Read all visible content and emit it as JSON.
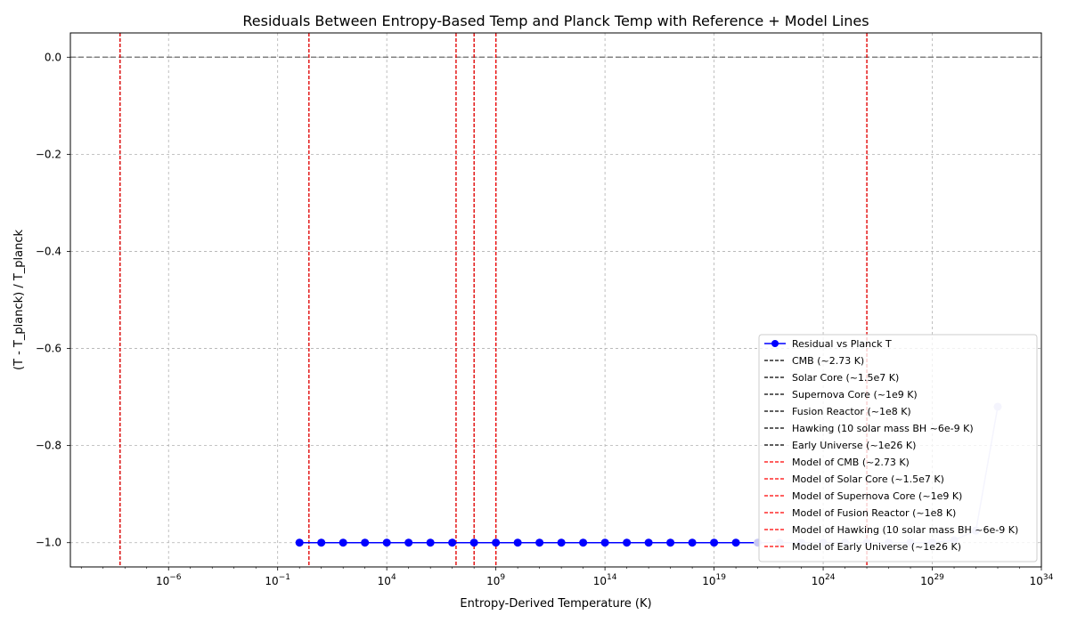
{
  "chart_data": {
    "type": "line",
    "title": "Residuals Between Entropy-Based Temp and Planck Temp with Reference + Model Lines",
    "xlabel": "Entropy-Derived Temperature (K)",
    "ylabel": "(T - T_planck) / T_planck",
    "xscale": "log",
    "xlim_exp": [
      -10.5,
      34
    ],
    "ylim": [
      -1.05,
      0.05
    ],
    "grid": true,
    "x_ticks": [
      {
        "exp": -6,
        "base": "10",
        "sup": "−6"
      },
      {
        "exp": -1,
        "base": "10",
        "sup": "−1"
      },
      {
        "exp": 4,
        "base": "10",
        "sup": "4"
      },
      {
        "exp": 9,
        "base": "10",
        "sup": "9"
      },
      {
        "exp": 14,
        "base": "10",
        "sup": "14"
      },
      {
        "exp": 19,
        "base": "10",
        "sup": "19"
      },
      {
        "exp": 24,
        "base": "10",
        "sup": "24"
      },
      {
        "exp": 29,
        "base": "10",
        "sup": "29"
      },
      {
        "exp": 34,
        "base": "10",
        "sup": "34"
      }
    ],
    "y_ticks": [
      {
        "value": 0.0,
        "label": "0.0"
      },
      {
        "value": -0.2,
        "label": "−0.2"
      },
      {
        "value": -0.4,
        "label": "−0.4"
      },
      {
        "value": -0.6,
        "label": "−0.6"
      },
      {
        "value": -0.8,
        "label": "−0.8"
      },
      {
        "value": -1.0,
        "label": "−1.0"
      }
    ],
    "residual_series": {
      "name": "Residual vs Planck T",
      "color": "#0000ff",
      "x_exp": [
        0.0,
        1.0,
        2.0,
        3.0,
        4.0,
        5.0,
        6.0,
        7.0,
        8.0,
        9.0,
        10.0,
        11.0,
        12.0,
        13.0,
        14.0,
        15.0,
        16.0,
        17.0,
        18.0,
        19.0,
        20.0,
        21.0,
        22.0,
        23.0,
        24.0,
        25.0,
        26.0,
        27.0,
        28.0,
        29.0,
        30.0,
        31.0,
        32.0
      ],
      "values": [
        -1.0,
        -1.0,
        -1.0,
        -1.0,
        -1.0,
        -1.0,
        -1.0,
        -1.0,
        -1.0,
        -1.0,
        -1.0,
        -1.0,
        -1.0,
        -1.0,
        -1.0,
        -1.0,
        -1.0,
        -1.0,
        -1.0,
        -1.0,
        -1.0,
        -1.0,
        -1.0,
        -1.0,
        -1.0,
        -1.0,
        -1.0,
        -1.0,
        -1.0,
        -1.0,
        -0.995,
        -0.975,
        -0.72
      ],
      "faded_from_index": 21,
      "faded_color": "#c8c8f5"
    },
    "reference_lines": [
      {
        "name": "CMB (~2.73 K)",
        "x_exp": 0.436
      },
      {
        "name": "Solar Core (~1.5e7 K)",
        "x_exp": 7.176
      },
      {
        "name": "Supernova Core (~1e9 K)",
        "x_exp": 9.0
      },
      {
        "name": "Fusion Reactor (~1e8 K)",
        "x_exp": 8.0
      },
      {
        "name": "Hawking (10 solar mass BH ~6e-9 K)",
        "x_exp": -8.222
      },
      {
        "name": "Early Universe (~1e26 K)",
        "x_exp": 26.0
      }
    ],
    "model_lines": [
      {
        "name": "Model of CMB (~2.73 K)",
        "x_exp": 0.436
      },
      {
        "name": "Model of Solar Core (~1.5e7 K)",
        "x_exp": 7.176
      },
      {
        "name": "Model of Supernova Core (~1e9 K)",
        "x_exp": 9.0
      },
      {
        "name": "Model of Fusion Reactor (~1e8 K)",
        "x_exp": 8.0
      },
      {
        "name": "Model of Hawking (10 solar mass BH ~6e-9 K)",
        "x_exp": -8.222
      },
      {
        "name": "Model of Early Universe (~1e26 K)",
        "x_exp": 26.0
      }
    ],
    "zero_line": {
      "value": 0.0,
      "color": "#808080"
    },
    "legend": {
      "placement": "lower-right"
    },
    "colors": {
      "reference": "#000000",
      "model": "#ff0000",
      "grid": "#b0b0b0"
    }
  }
}
